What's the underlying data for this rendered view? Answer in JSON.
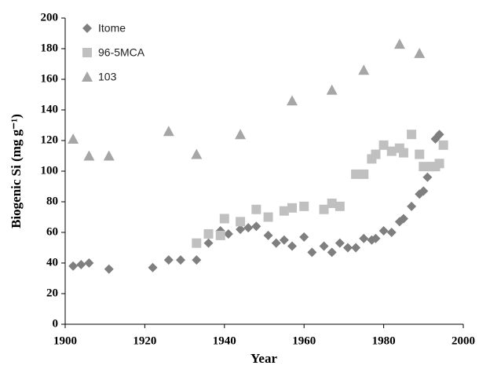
{
  "chart_data": {
    "type": "scatter",
    "xlabel": "Year",
    "ylabel": "Biogenic Si (mg g⁻¹)",
    "xlim": [
      1900,
      2000
    ],
    "xticks": [
      1900,
      1920,
      1940,
      1960,
      1980,
      2000
    ],
    "ylim": [
      0,
      200
    ],
    "yticks": [
      0,
      20,
      40,
      60,
      80,
      100,
      120,
      140,
      160,
      180,
      200
    ],
    "grid": false,
    "legend": "upper left",
    "series": [
      {
        "name": "Itome",
        "color": "#7f7f7f",
        "marker": "diamond",
        "x": [
          1902,
          1904,
          1906,
          1911,
          1922,
          1926,
          1929,
          1933,
          1936,
          1939,
          1941,
          1944,
          1946,
          1948,
          1951,
          1953,
          1955,
          1957,
          1960,
          1962,
          1965,
          1967,
          1969,
          1971,
          1973,
          1975,
          1977,
          1978,
          1980,
          1982,
          1984,
          1985,
          1987,
          1989,
          1990,
          1991,
          1993,
          1994
        ],
        "values": [
          38,
          39,
          40,
          36,
          37,
          42,
          42,
          42,
          53,
          61,
          59,
          62,
          63,
          64,
          58,
          53,
          55,
          51,
          57,
          47,
          51,
          47,
          53,
          50,
          50,
          56,
          55,
          56,
          61,
          60,
          67,
          69,
          77,
          85,
          87,
          96,
          121,
          124
        ]
      },
      {
        "name": "96-5MCA",
        "color": "#c0c0c0",
        "marker": "square",
        "x": [
          1933,
          1936,
          1939,
          1940,
          1944,
          1948,
          1951,
          1955,
          1957,
          1960,
          1965,
          1967,
          1969,
          1973,
          1975,
          1977,
          1978,
          1980,
          1982,
          1984,
          1985,
          1987,
          1989,
          1990,
          1992,
          1993,
          1994,
          1995
        ],
        "values": [
          53,
          59,
          58,
          69,
          67,
          75,
          70,
          74,
          76,
          77,
          75,
          79,
          77,
          98,
          98,
          108,
          111,
          117,
          113,
          115,
          112,
          124,
          111,
          103,
          103,
          103,
          105,
          117
        ]
      },
      {
        "name": "103",
        "color": "#a6a6a6",
        "marker": "triangle",
        "x": [
          1902,
          1906,
          1911,
          1926,
          1933,
          1944,
          1957,
          1967,
          1975,
          1984,
          1989
        ],
        "values": [
          121,
          110,
          110,
          126,
          111,
          124,
          146,
          153,
          166,
          183,
          177
        ]
      }
    ]
  }
}
